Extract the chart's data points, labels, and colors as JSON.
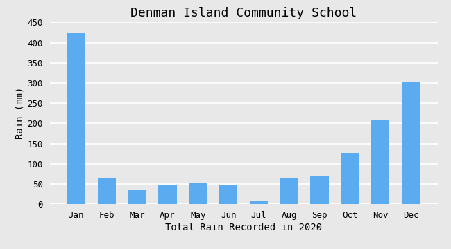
{
  "title": "Denman Island Community School",
  "xlabel": "Total Rain Recorded in 2020",
  "ylabel": "Rain (mm)",
  "months": [
    "Jan",
    "Feb",
    "Mar",
    "Apr",
    "May",
    "Jun",
    "Jul",
    "Aug",
    "Sep",
    "Oct",
    "Nov",
    "Dec"
  ],
  "values": [
    425,
    66,
    37,
    46,
    53,
    46,
    7,
    65,
    68,
    127,
    210,
    304
  ],
  "bar_color": "#5aabf0",
  "ylim": [
    0,
    450
  ],
  "yticks": [
    0,
    50,
    100,
    150,
    200,
    250,
    300,
    350,
    400,
    450
  ],
  "background_color": "#e8e8e8",
  "plot_bg_color": "#e8e8e8",
  "grid_color": "#ffffff",
  "title_fontsize": 13,
  "label_fontsize": 10,
  "tick_fontsize": 9
}
